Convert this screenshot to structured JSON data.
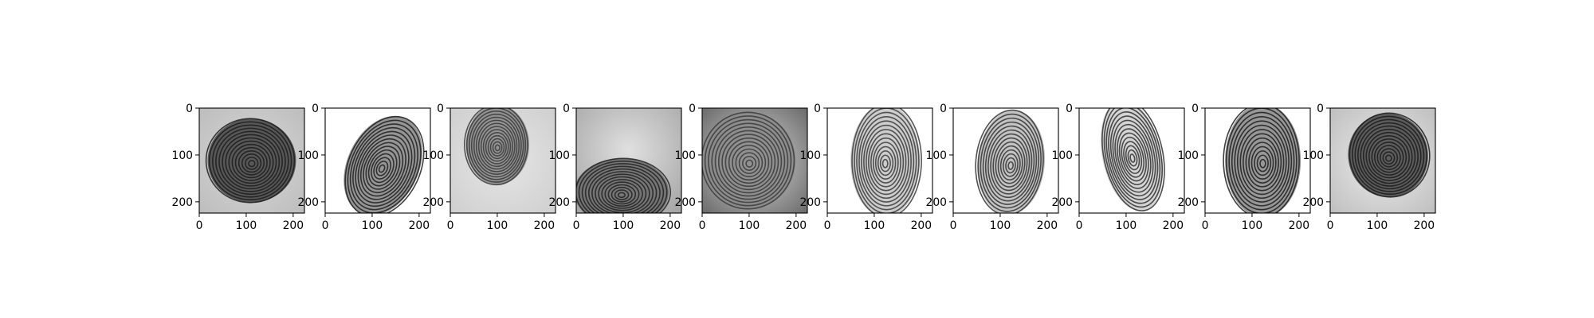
{
  "figure": {
    "panel_count": 10,
    "x_ticks": [
      "0",
      "100",
      "200"
    ],
    "y_ticks": [
      "0",
      "100",
      "200"
    ],
    "x_range": [
      0,
      224
    ],
    "y_range": [
      224,
      0
    ],
    "panels": [
      {
        "subject": "fingerprint-image-1",
        "tone": "dark-gray-background"
      },
      {
        "subject": "fingerprint-image-2",
        "tone": "white-background"
      },
      {
        "subject": "fingerprint-image-3",
        "tone": "light-gray-background"
      },
      {
        "subject": "fingerprint-image-4",
        "tone": "gray-background"
      },
      {
        "subject": "fingerprint-image-5",
        "tone": "dark-gray-background"
      },
      {
        "subject": "fingerprint-image-6",
        "tone": "white-background"
      },
      {
        "subject": "fingerprint-image-7",
        "tone": "white-background"
      },
      {
        "subject": "fingerprint-image-8",
        "tone": "white-background"
      },
      {
        "subject": "fingerprint-image-9",
        "tone": "white-background"
      },
      {
        "subject": "fingerprint-image-10",
        "tone": "light-gray-background"
      }
    ]
  }
}
